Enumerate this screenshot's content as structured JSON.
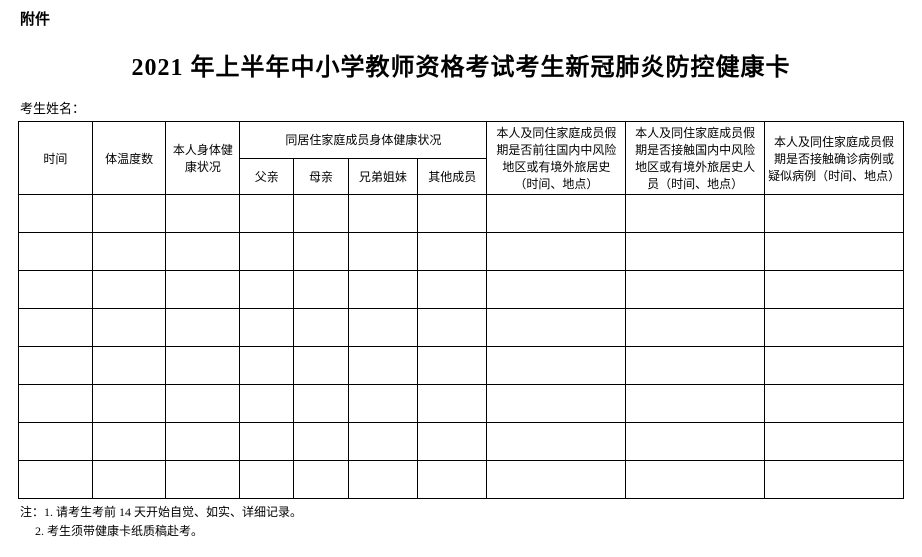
{
  "attachment_label": "附件",
  "title": "2021 年上半年中小学教师资格考试考生新冠肺炎防控健康卡",
  "student_name_label": "考生姓名：",
  "headers": {
    "time": "时间",
    "temperature": "体温度数",
    "self_health": "本人身体健康状况",
    "family_health_group": "同居住家庭成员身体健康状况",
    "father": "父亲",
    "mother": "母亲",
    "sibling": "兄弟姐妹",
    "other_member": "其他成员",
    "travel_history": "本人及同住家庭成员假期是否前往国内中风险地区或有境外旅居史（时间、地点）",
    "contact_risk": "本人及同住家庭成员假期是否接触国内中风险地区或有境外旅居史人员（时间、地点）",
    "contact_case": "本人及同住家庭成员假期是否接触确诊病例或疑似病例（时间、地点）"
  },
  "data_rows_count": 8,
  "notes": {
    "prefix": "注：",
    "note1": "1. 请考生考前 14 天开始自觉、如实、详细记录。",
    "note2": "2. 考生须带健康卡纸质稿赴考。"
  },
  "colors": {
    "background": "#ffffff",
    "text": "#000000",
    "border": "#000000"
  }
}
